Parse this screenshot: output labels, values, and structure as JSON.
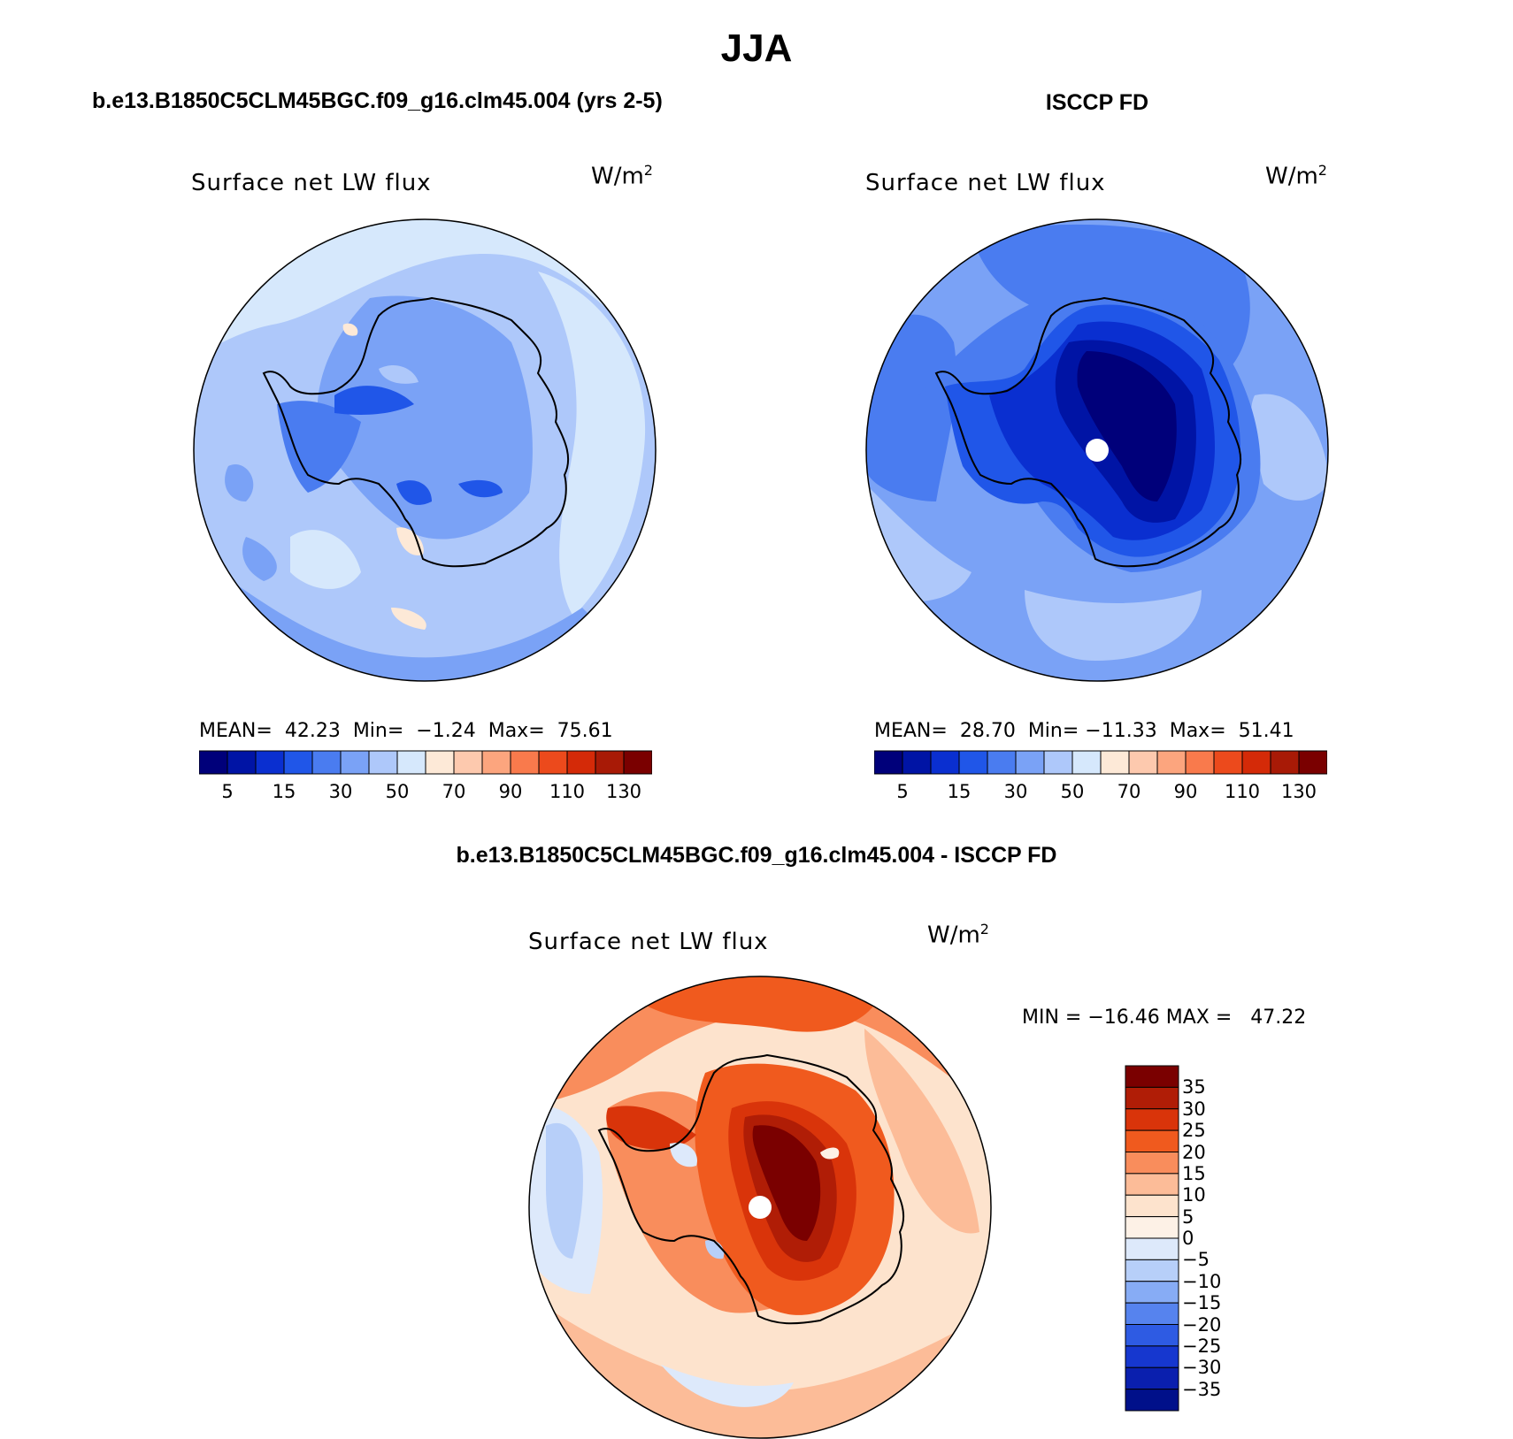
{
  "title": "JJA",
  "panels": {
    "left": {
      "case": "b.e13.B1850C5CLM45BGC.f09_g16.clm45.004 (yrs 2-5)",
      "variable": "Surface net LW flux",
      "units": "W/m",
      "units_sup": "2",
      "mean_label": "MEAN=",
      "mean": "42.23",
      "min_label": "Min=",
      "min": "−1.24",
      "max_label": "Max=",
      "max": "75.61"
    },
    "right": {
      "case": "ISCCP FD",
      "variable": "Surface net LW flux",
      "units": "W/m",
      "units_sup": "2",
      "mean_label": "MEAN=",
      "mean": "28.70",
      "min_label": "Min=",
      "min": "−11.33",
      "max_label": "Max=",
      "max": "51.41"
    },
    "diff": {
      "case": "b.e13.B1850C5CLM45BGC.f09_g16.clm45.004 - ISCCP FD",
      "variable": "Surface net LW flux",
      "units": "W/m",
      "units_sup": "2",
      "minmax": "MIN = −16.46 MAX =   47.22"
    }
  },
  "colorbar_abs": {
    "colors": [
      "#00007a",
      "#0014a5",
      "#0a2fd0",
      "#2056e8",
      "#4a7cf0",
      "#7aa2f6",
      "#aec8fa",
      "#d6e8fc",
      "#fde9d7",
      "#fdc9ae",
      "#fca57e",
      "#f97a4c",
      "#ec4a1c",
      "#d42a08",
      "#a81a06",
      "#7a0000"
    ],
    "tick_labels": [
      "5",
      "15",
      "30",
      "50",
      "70",
      "90",
      "110",
      "130"
    ]
  },
  "colorbar_diff": {
    "colors": [
      "#7a0000",
      "#b01d06",
      "#d9340a",
      "#f05a1e",
      "#f98d5c",
      "#fcbc98",
      "#fde3cd",
      "#fdf1e6",
      "#dde9fb",
      "#b7cff9",
      "#87acf5",
      "#5683ee",
      "#2e5be3",
      "#1637cf",
      "#0a1fae",
      "#00108a"
    ],
    "tick_labels": [
      "35",
      "30",
      "25",
      "20",
      "15",
      "10",
      "5",
      "0",
      "−5",
      "−10",
      "−15",
      "−20",
      "−25",
      "−30",
      "−35"
    ]
  }
}
